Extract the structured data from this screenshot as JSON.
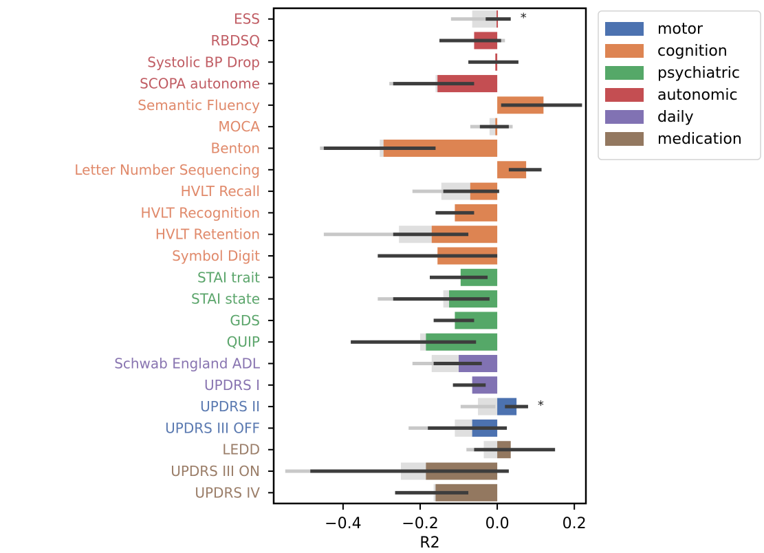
{
  "chart_data": {
    "type": "bar",
    "orientation": "horizontal",
    "xlabel": "R2",
    "ylabel": "",
    "xlim": [
      -0.58,
      0.23
    ],
    "x_ticks": [
      -0.4,
      -0.2,
      0.0,
      0.2
    ],
    "x_tick_labels": [
      "−0.4",
      "−0.2",
      "0.0",
      "0.2"
    ],
    "grid": false,
    "legend_position": "top-right",
    "legend": [
      {
        "name": "motor",
        "color": "#4c72b0"
      },
      {
        "name": "cognition",
        "color": "#dd8452"
      },
      {
        "name": "psychiatric",
        "color": "#55a868"
      },
      {
        "name": "autonomic",
        "color": "#c44e52"
      },
      {
        "name": "daily",
        "color": "#8172b3"
      },
      {
        "name": "medication",
        "color": "#937860"
      }
    ],
    "category_colors": {
      "motor": "#4c72b0",
      "cognition": "#dd8452",
      "psychiatric": "#55a868",
      "autonomic": "#c44e52",
      "daily": "#8172b3",
      "medication": "#937860"
    },
    "label_colors": {
      "motor": "#5a79b0",
      "cognition": "#e0896a",
      "psychiatric": "#5ba56b",
      "autonomic": "#c05c63",
      "daily": "#8874b0",
      "medication": "#9a7d68"
    },
    "rows": [
      {
        "label": "ESS",
        "category": "autonomic",
        "value": 0.0,
        "ci": [
          -0.03,
          0.035
        ],
        "shadow": -0.065,
        "shadow_ci": [
          -0.12,
          0.0
        ],
        "star": "*"
      },
      {
        "label": "RBDSQ",
        "category": "autonomic",
        "value": -0.06,
        "ci": [
          -0.15,
          0.01
        ],
        "shadow": -0.045,
        "shadow_ci": [
          -0.06,
          0.02
        ],
        "star": ""
      },
      {
        "label": "Systolic BP Drop",
        "category": "autonomic",
        "value": -0.005,
        "ci": [
          -0.075,
          0.055
        ],
        "shadow": null,
        "shadow_ci": null,
        "star": ""
      },
      {
        "label": "SCOPA autonome",
        "category": "autonomic",
        "value": -0.155,
        "ci": [
          -0.27,
          -0.06
        ],
        "shadow": -0.16,
        "shadow_ci": [
          -0.28,
          -0.05
        ],
        "star": ""
      },
      {
        "label": "Semantic Fluency",
        "category": "cognition",
        "value": 0.12,
        "ci": [
          0.01,
          0.22
        ],
        "shadow": null,
        "shadow_ci": null,
        "star": ""
      },
      {
        "label": "MOCA",
        "category": "cognition",
        "value": -0.005,
        "ci": [
          -0.045,
          0.03
        ],
        "shadow": -0.02,
        "shadow_ci": [
          -0.07,
          0.04
        ],
        "star": ""
      },
      {
        "label": "Benton",
        "category": "cognition",
        "value": -0.295,
        "ci": [
          -0.45,
          -0.16
        ],
        "shadow": -0.305,
        "shadow_ci": [
          -0.46,
          -0.17
        ],
        "star": ""
      },
      {
        "label": "Letter Number Sequencing",
        "category": "cognition",
        "value": 0.075,
        "ci": [
          0.03,
          0.115
        ],
        "shadow": null,
        "shadow_ci": null,
        "star": ""
      },
      {
        "label": "HVLT Recall",
        "category": "cognition",
        "value": -0.07,
        "ci": [
          -0.14,
          0.005
        ],
        "shadow": -0.145,
        "shadow_ci": [
          -0.22,
          -0.07
        ],
        "star": ""
      },
      {
        "label": "HVLT Recognition",
        "category": "cognition",
        "value": -0.11,
        "ci": [
          -0.16,
          -0.06
        ],
        "shadow": null,
        "shadow_ci": null,
        "star": ""
      },
      {
        "label": "HVLT Retention",
        "category": "cognition",
        "value": -0.17,
        "ci": [
          -0.27,
          -0.075
        ],
        "shadow": -0.255,
        "shadow_ci": [
          -0.45,
          -0.05
        ],
        "star": ""
      },
      {
        "label": "Symbol Digit",
        "category": "cognition",
        "value": -0.155,
        "ci": [
          -0.31,
          0.0
        ],
        "shadow": -0.15,
        "shadow_ci": [
          -0.27,
          -0.03
        ],
        "star": ""
      },
      {
        "label": "STAI trait",
        "category": "psychiatric",
        "value": -0.095,
        "ci": [
          -0.175,
          -0.025
        ],
        "shadow": null,
        "shadow_ci": null,
        "star": ""
      },
      {
        "label": "STAI state",
        "category": "psychiatric",
        "value": -0.125,
        "ci": [
          -0.27,
          -0.02
        ],
        "shadow": -0.14,
        "shadow_ci": [
          -0.31,
          -0.13
        ],
        "star": ""
      },
      {
        "label": "GDS",
        "category": "psychiatric",
        "value": -0.11,
        "ci": [
          -0.165,
          -0.06
        ],
        "shadow": null,
        "shadow_ci": null,
        "star": ""
      },
      {
        "label": "QUIP",
        "category": "psychiatric",
        "value": -0.185,
        "ci": [
          -0.38,
          -0.055
        ],
        "shadow": -0.2,
        "shadow_ci": [
          -0.33,
          -0.06
        ],
        "star": ""
      },
      {
        "label": "Schwab England ADL",
        "category": "daily",
        "value": -0.1,
        "ci": [
          -0.165,
          -0.04
        ],
        "shadow": -0.17,
        "shadow_ci": [
          -0.22,
          -0.1
        ],
        "star": ""
      },
      {
        "label": "UPDRS I",
        "category": "daily",
        "value": -0.065,
        "ci": [
          -0.115,
          -0.03
        ],
        "shadow": null,
        "shadow_ci": null,
        "star": ""
      },
      {
        "label": "UPDRS II",
        "category": "motor",
        "value": 0.05,
        "ci": [
          0.02,
          0.08
        ],
        "shadow": -0.05,
        "shadow_ci": [
          -0.095,
          -0.005
        ],
        "star": "*"
      },
      {
        "label": "UPDRS III OFF",
        "category": "motor",
        "value": -0.065,
        "ci": [
          -0.18,
          0.025
        ],
        "shadow": -0.11,
        "shadow_ci": [
          -0.23,
          -0.03
        ],
        "star": ""
      },
      {
        "label": "LEDD",
        "category": "medication",
        "value": 0.035,
        "ci": [
          -0.06,
          0.15
        ],
        "shadow": -0.035,
        "shadow_ci": [
          -0.08,
          0.02
        ],
        "star": ""
      },
      {
        "label": "UPDRS III ON",
        "category": "medication",
        "value": -0.185,
        "ci": [
          -0.485,
          0.03
        ],
        "shadow": -0.25,
        "shadow_ci": [
          -0.55,
          -0.04
        ],
        "star": ""
      },
      {
        "label": "UPDRS IV",
        "category": "medication",
        "value": -0.16,
        "ci": [
          -0.265,
          -0.075
        ],
        "shadow": -0.165,
        "shadow_ci": [
          -0.23,
          -0.08
        ],
        "star": ""
      }
    ]
  }
}
